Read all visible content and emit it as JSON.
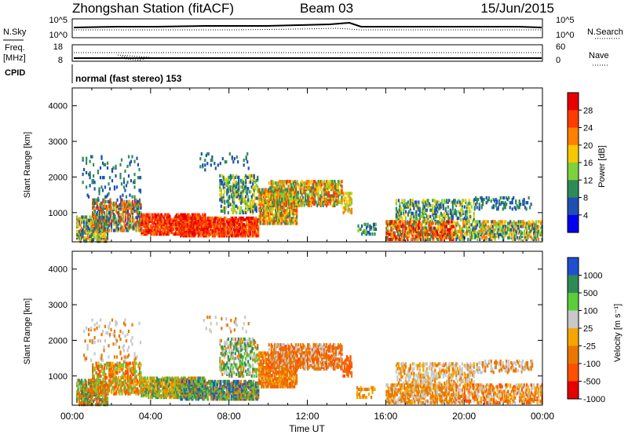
{
  "header": {
    "station": "Zhongshan Station (fitACF)",
    "beam": "Beam 03",
    "date": "15/Jun/2015"
  },
  "nsky_panel": {
    "left_label": "N.Sky",
    "right_label": "N.Search",
    "left_ticks": [
      "10^5",
      "10^0"
    ],
    "right_ticks": [
      "10^5",
      "10^0"
    ]
  },
  "freq_panel": {
    "left_label_line1": "Freq.",
    "left_label_line2": "[MHz]",
    "right_label": "Nave",
    "left_ticks": [
      "18",
      "8"
    ],
    "right_ticks": [
      "60",
      "0"
    ]
  },
  "cpid": {
    "label": "CPID",
    "value": "normal (fast stereo) 153"
  },
  "colors": {
    "power": [
      "#0000ee",
      "#1e50b4",
      "#2e8b57",
      "#7cd23c",
      "#f5c800",
      "#ff7f00",
      "#ff3c00",
      "#e60000"
    ],
    "velocity": [
      "#2050d0",
      "#2e8b57",
      "#5ccd3a",
      "#c8c8c8",
      "#f5a500",
      "#e87800",
      "#ff5000",
      "#e60000"
    ]
  },
  "chart_data": [
    {
      "type": "heatmap",
      "name": "power",
      "ylabel": "Slant Range [km]",
      "yticks": [
        "1000",
        "2000",
        "3000",
        "4000"
      ],
      "ylim": [
        180,
        4500
      ],
      "xlim": [
        0,
        24
      ],
      "colorbar_label": "Power [dB]",
      "colorbar_ticks": [
        "4",
        "8",
        "12",
        "16",
        "20",
        "24",
        "28"
      ],
      "colorbar_range": [
        0,
        32
      ]
    },
    {
      "type": "heatmap",
      "name": "velocity",
      "ylabel": "Slant Range [km]",
      "yticks": [
        "1000",
        "2000",
        "3000",
        "4000"
      ],
      "ylim": [
        180,
        4500
      ],
      "xlim": [
        0,
        24
      ],
      "xlabel": "Time UT",
      "xticks": [
        "00:00",
        "04:00",
        "08:00",
        "12:00",
        "16:00",
        "20:00",
        "00:00"
      ],
      "colorbar_label": "Velocity [m s⁻¹]",
      "colorbar_ticks": [
        "1000",
        "500",
        "100",
        "25",
        "-25",
        "-100",
        "-500",
        "-1000"
      ]
    }
  ]
}
